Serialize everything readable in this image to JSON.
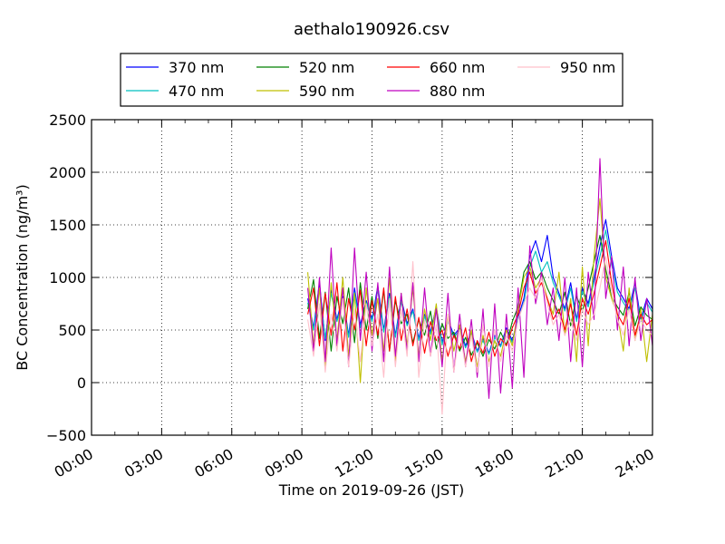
{
  "chart_data": {
    "type": "line",
    "title": "aethalo190926.csv",
    "xlabel": "Time on 2019-09-26 (JST)",
    "ylabel": "BC Concentration (ng/m³)",
    "x_unit": "hours since 00:00 JST",
    "xlim": [
      0,
      24
    ],
    "ylim": [
      -500,
      2500
    ],
    "x_tick_values": [
      0,
      3,
      6,
      9,
      12,
      15,
      18,
      21,
      24
    ],
    "x_tick_labels": [
      "00:00",
      "03:00",
      "06:00",
      "09:00",
      "12:00",
      "15:00",
      "18:00",
      "21:00",
      "24:00"
    ],
    "y_tick_values": [
      -500,
      0,
      500,
      1000,
      1500,
      2000,
      2500
    ],
    "y_tick_labels": [
      "−500",
      "0",
      "500",
      "1000",
      "1500",
      "2000",
      "2500"
    ],
    "grid": true,
    "legend_position": "top",
    "legend_columns": 4,
    "series": [
      {
        "name": "370 nm",
        "color": "#0000ff",
        "x": [
          9.25,
          9.5,
          9.75,
          10,
          10.25,
          10.5,
          10.75,
          11,
          11.25,
          11.5,
          11.75,
          12,
          12.25,
          12.5,
          12.75,
          13,
          13.25,
          13.5,
          13.75,
          14,
          14.25,
          14.5,
          14.75,
          15,
          15.25,
          15.5,
          15.75,
          16,
          16.25,
          16.5,
          16.75,
          17,
          17.25,
          17.5,
          17.75,
          18,
          18.25,
          18.5,
          18.75,
          19,
          19.25,
          19.5,
          19.75,
          20,
          20.25,
          20.5,
          20.75,
          21,
          21.25,
          21.5,
          21.75,
          22,
          22.25,
          22.5,
          22.75,
          23,
          23.25,
          23.5,
          23.75,
          24
        ],
        "y": [
          800,
          520,
          950,
          400,
          880,
          600,
          820,
          450,
          900,
          550,
          780,
          600,
          920,
          500,
          850,
          450,
          800,
          560,
          700,
          420,
          650,
          480,
          720,
          380,
          600,
          450,
          520,
          350,
          480,
          300,
          420,
          280,
          450,
          350,
          520,
          400,
          620,
          800,
          1200,
          1350,
          1150,
          1400,
          1000,
          850,
          700,
          950,
          600,
          900,
          750,
          1000,
          1300,
          1550,
          1200,
          900,
          800,
          700,
          950,
          600,
          800,
          700
        ]
      },
      {
        "name": "470 nm",
        "color": "#00bfbf",
        "x": [
          9.25,
          9.5,
          9.75,
          10,
          10.25,
          10.5,
          10.75,
          11,
          11.25,
          11.5,
          11.75,
          12,
          12.25,
          12.5,
          12.75,
          13,
          13.25,
          13.5,
          13.75,
          14,
          14.25,
          14.5,
          14.75,
          15,
          15.25,
          15.5,
          15.75,
          16,
          16.25,
          16.5,
          16.75,
          17,
          17.25,
          17.5,
          17.75,
          18,
          18.25,
          18.5,
          18.75,
          19,
          19.25,
          19.5,
          19.75,
          20,
          20.25,
          20.5,
          20.75,
          21,
          21.25,
          21.5,
          21.75,
          22,
          22.25,
          22.5,
          22.75,
          23,
          23.25,
          23.5,
          23.75,
          24
        ],
        "y": [
          760,
          500,
          900,
          420,
          850,
          580,
          790,
          430,
          860,
          520,
          760,
          580,
          880,
          480,
          820,
          430,
          770,
          540,
          680,
          400,
          630,
          460,
          690,
          360,
          580,
          430,
          500,
          330,
          460,
          290,
          400,
          270,
          430,
          340,
          500,
          380,
          600,
          760,
          1100,
          1250,
          1050,
          1150,
          950,
          820,
          680,
          900,
          580,
          870,
          720,
          960,
          1200,
          1450,
          1120,
          860,
          760,
          680,
          900,
          580,
          760,
          670
        ]
      },
      {
        "name": "520 nm",
        "color": "#008000",
        "x": [
          9.25,
          9.5,
          9.75,
          10,
          10.25,
          10.5,
          10.75,
          11,
          11.25,
          11.5,
          11.75,
          12,
          12.25,
          12.5,
          12.75,
          13,
          13.25,
          13.5,
          13.75,
          14,
          14.25,
          14.5,
          14.75,
          15,
          15.25,
          15.5,
          15.75,
          16,
          16.25,
          16.5,
          16.75,
          17,
          17.25,
          17.5,
          17.75,
          18,
          18.25,
          18.5,
          18.75,
          19,
          19.25,
          19.5,
          19.75,
          20,
          20.25,
          20.5,
          20.75,
          21,
          21.25,
          21.5,
          21.75,
          22,
          22.25,
          22.5,
          22.75,
          23,
          23.25,
          23.5,
          23.75,
          24
        ],
        "y": [
          700,
          980,
          420,
          860,
          300,
          820,
          560,
          900,
          380,
          950,
          500,
          820,
          420,
          880,
          300,
          780,
          560,
          650,
          380,
          600,
          450,
          680,
          320,
          560,
          420,
          480,
          300,
          430,
          260,
          380,
          250,
          410,
          320,
          480,
          360,
          580,
          720,
          1050,
          1150,
          980,
          1050,
          900,
          780,
          650,
          860,
          540,
          820,
          680,
          900,
          1150,
          1400,
          1080,
          820,
          720,
          640,
          860,
          540,
          720,
          640,
          600
        ]
      },
      {
        "name": "590 nm",
        "color": "#bfbf00",
        "x": [
          9.25,
          9.5,
          9.75,
          10,
          10.25,
          10.5,
          10.75,
          11,
          11.25,
          11.5,
          11.75,
          12,
          12.25,
          12.5,
          12.75,
          13,
          13.25,
          13.5,
          13.75,
          14,
          14.25,
          14.5,
          14.75,
          15,
          15.25,
          15.5,
          15.75,
          16,
          16.25,
          16.5,
          16.75,
          17,
          17.25,
          17.5,
          17.75,
          18,
          18.25,
          18.5,
          18.75,
          19,
          19.25,
          19.5,
          19.75,
          20,
          20.25,
          20.5,
          20.75,
          21,
          21.25,
          21.5,
          21.75,
          22,
          22.25,
          22.5,
          22.75,
          23,
          23.25,
          23.5,
          23.75,
          24
        ],
        "y": [
          1050,
          350,
          900,
          150,
          950,
          400,
          1000,
          250,
          850,
          0,
          900,
          450,
          800,
          300,
          1000,
          200,
          850,
          350,
          900,
          250,
          700,
          400,
          750,
          200,
          650,
          300,
          550,
          200,
          500,
          150,
          450,
          200,
          400,
          250,
          500,
          350,
          700,
          1000,
          1100,
          900,
          1000,
          800,
          650,
          1050,
          450,
          800,
          200,
          1100,
          350,
          1200,
          1750,
          1000,
          800,
          650,
          300,
          900,
          400,
          700,
          200,
          650
        ]
      },
      {
        "name": "660 nm",
        "color": "#ff0000",
        "x": [
          9.25,
          9.5,
          9.75,
          10,
          10.25,
          10.5,
          10.75,
          11,
          11.25,
          11.5,
          11.75,
          12,
          12.25,
          12.5,
          12.75,
          13,
          13.25,
          13.5,
          13.75,
          14,
          14.25,
          14.5,
          14.75,
          15,
          15.25,
          15.5,
          15.75,
          16,
          16.25,
          16.5,
          16.75,
          17,
          17.25,
          17.5,
          17.75,
          18,
          18.25,
          18.5,
          18.75,
          19,
          19.25,
          19.5,
          19.75,
          20,
          20.25,
          20.5,
          20.75,
          21,
          21.25,
          21.5,
          21.75,
          22,
          22.25,
          22.5,
          22.75,
          23,
          23.25,
          23.5,
          23.75,
          24
        ],
        "y": [
          650,
          900,
          350,
          850,
          450,
          950,
          300,
          800,
          500,
          880,
          350,
          780,
          450,
          900,
          300,
          820,
          400,
          700,
          350,
          620,
          280,
          580,
          400,
          500,
          250,
          450,
          320,
          520,
          200,
          400,
          280,
          480,
          250,
          420,
          350,
          520,
          650,
          900,
          1050,
          850,
          950,
          800,
          600,
          700,
          500,
          750,
          450,
          800,
          650,
          850,
          1100,
          1350,
          950,
          650,
          550,
          800,
          450,
          650,
          550,
          600
        ]
      },
      {
        "name": "880 nm",
        "color": "#bf00bf",
        "x": [
          9.25,
          9.5,
          9.75,
          10,
          10.25,
          10.5,
          10.75,
          11,
          11.25,
          11.5,
          11.75,
          12,
          12.25,
          12.5,
          12.75,
          13,
          13.25,
          13.5,
          13.75,
          14,
          14.25,
          14.5,
          14.75,
          15,
          15.25,
          15.5,
          15.75,
          16,
          16.25,
          16.5,
          16.75,
          17,
          17.25,
          17.5,
          17.75,
          18,
          18.25,
          18.5,
          18.75,
          19,
          19.25,
          19.5,
          19.75,
          20,
          20.25,
          20.5,
          20.75,
          21,
          21.25,
          21.5,
          21.75,
          22,
          22.25,
          22.5,
          22.75,
          23,
          23.25,
          23.5,
          23.75,
          24
        ],
        "y": [
          900,
          300,
          1000,
          200,
          1280,
          350,
          900,
          150,
          1280,
          400,
          1050,
          300,
          950,
          200,
          1100,
          250,
          850,
          300,
          950,
          200,
          900,
          250,
          700,
          150,
          850,
          100,
          650,
          150,
          600,
          50,
          700,
          -150,
          750,
          -100,
          650,
          -50,
          900,
          50,
          1300,
          750,
          1050,
          550,
          900,
          400,
          1000,
          200,
          900,
          150,
          1050,
          600,
          2130,
          800,
          1200,
          500,
          1100,
          350,
          1000,
          400,
          800,
          350
        ]
      },
      {
        "name": "950 nm",
        "color": "#ffc0cb",
        "x": [
          9.25,
          9.5,
          9.75,
          10,
          10.25,
          10.5,
          10.75,
          11,
          11.25,
          11.5,
          11.75,
          12,
          12.25,
          12.5,
          12.75,
          13,
          13.25,
          13.5,
          13.75,
          14,
          14.25,
          14.5,
          14.75,
          15,
          15.25,
          15.5,
          15.75,
          16,
          16.25,
          16.5,
          16.75,
          17,
          17.25,
          17.5,
          17.75,
          18,
          18.25,
          18.5,
          18.75,
          19,
          19.25,
          19.5,
          19.75,
          20,
          20.25,
          20.5,
          20.75,
          21,
          21.25,
          21.5,
          21.75,
          22,
          22.25,
          22.5,
          22.75,
          23,
          23.25,
          23.5,
          23.75,
          24
        ],
        "y": [
          600,
          250,
          750,
          100,
          650,
          300,
          800,
          150,
          700,
          200,
          750,
          350,
          650,
          50,
          800,
          150,
          700,
          250,
          1150,
          50,
          600,
          250,
          550,
          -300,
          650,
          100,
          500,
          150,
          450,
          100,
          550,
          150,
          500,
          200,
          450,
          300,
          600,
          750,
          900,
          800,
          1000,
          750,
          550,
          650,
          450,
          600,
          400,
          700,
          550,
          650,
          900,
          1200,
          850,
          600,
          450,
          700,
          400,
          600,
          500,
          450
        ]
      }
    ]
  }
}
